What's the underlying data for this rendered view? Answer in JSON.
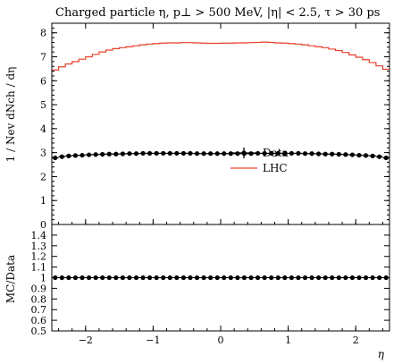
{
  "chart_data": {
    "type": "line",
    "title": "Charged particle η, p⊥ > 500 MeV, |η| < 2.5, τ > 30 ps",
    "xlabel": "η",
    "ylabel": "1 / Nev dNch / dη",
    "ratio_ylabel": "MC/Data",
    "xlim": [
      -2.5,
      2.5
    ],
    "ylim": [
      0,
      8.4
    ],
    "ratio_ylim": [
      0.5,
      1.5
    ],
    "x_ticks": [
      -2,
      -1,
      0,
      1,
      2
    ],
    "y_ticks": [
      0,
      1,
      2,
      3,
      4,
      5,
      6,
      7,
      8
    ],
    "ratio_ticks": [
      0.5,
      0.6,
      0.7,
      0.8,
      0.9,
      1,
      1.1,
      1.2,
      1.3,
      1.4
    ],
    "legend": {
      "placement": "center-right",
      "entries": [
        "Data",
        "LHC"
      ]
    },
    "bin_edges": [
      -2.5,
      -2.4,
      -2.3,
      -2.2,
      -2.1,
      -2.0,
      -1.9,
      -1.8,
      -1.7,
      -1.6,
      -1.5,
      -1.4,
      -1.3,
      -1.2,
      -1.1,
      -1.0,
      -0.9,
      -0.8,
      -0.7,
      -0.6,
      -0.5,
      -0.4,
      -0.3,
      -0.2,
      -0.1,
      0.0,
      0.1,
      0.2,
      0.3,
      0.4,
      0.5,
      0.6,
      0.7,
      0.8,
      0.9,
      1.0,
      1.1,
      1.2,
      1.3,
      1.4,
      1.5,
      1.6,
      1.7,
      1.8,
      1.9,
      2.0,
      2.1,
      2.2,
      2.3,
      2.4,
      2.5
    ],
    "series": [
      {
        "name": "Data",
        "style": "points",
        "color": "#000000",
        "values": [
          2.78,
          2.83,
          2.86,
          2.88,
          2.89,
          2.91,
          2.92,
          2.93,
          2.94,
          2.94,
          2.95,
          2.96,
          2.96,
          2.97,
          2.97,
          2.97,
          2.97,
          2.97,
          2.97,
          2.97,
          2.97,
          2.96,
          2.96,
          2.96,
          2.96,
          2.96,
          2.96,
          2.96,
          2.96,
          2.96,
          2.97,
          2.97,
          2.97,
          2.97,
          2.97,
          2.97,
          2.97,
          2.96,
          2.96,
          2.95,
          2.94,
          2.94,
          2.93,
          2.92,
          2.91,
          2.89,
          2.88,
          2.86,
          2.83,
          2.78
        ]
      },
      {
        "name": "LHC",
        "style": "step",
        "color": "#e8402a",
        "values": [
          6.45,
          6.58,
          6.7,
          6.8,
          6.9,
          7.0,
          7.1,
          7.2,
          7.28,
          7.34,
          7.38,
          7.42,
          7.46,
          7.5,
          7.53,
          7.55,
          7.57,
          7.58,
          7.58,
          7.59,
          7.59,
          7.58,
          7.57,
          7.56,
          7.56,
          7.57,
          7.57,
          7.58,
          7.58,
          7.59,
          7.6,
          7.61,
          7.6,
          7.58,
          7.57,
          7.55,
          7.53,
          7.5,
          7.46,
          7.42,
          7.38,
          7.32,
          7.26,
          7.18,
          7.08,
          6.98,
          6.88,
          6.76,
          6.62,
          6.48
        ]
      }
    ],
    "ratio_values": [
      1.0,
      1.0,
      1.0,
      1.0,
      1.0,
      1.0,
      1.0,
      1.0,
      1.0,
      1.0,
      1.0,
      1.0,
      1.0,
      1.0,
      1.0,
      1.0,
      1.0,
      1.0,
      1.0,
      1.0,
      1.0,
      1.0,
      1.0,
      1.0,
      1.0,
      1.0,
      1.0,
      1.0,
      1.0,
      1.0,
      1.0,
      1.0,
      1.0,
      1.0,
      1.0,
      1.0,
      1.0,
      1.0,
      1.0,
      1.0,
      1.0,
      1.0,
      1.0,
      1.0,
      1.0,
      1.0,
      1.0,
      1.0,
      1.0,
      1.0
    ]
  }
}
